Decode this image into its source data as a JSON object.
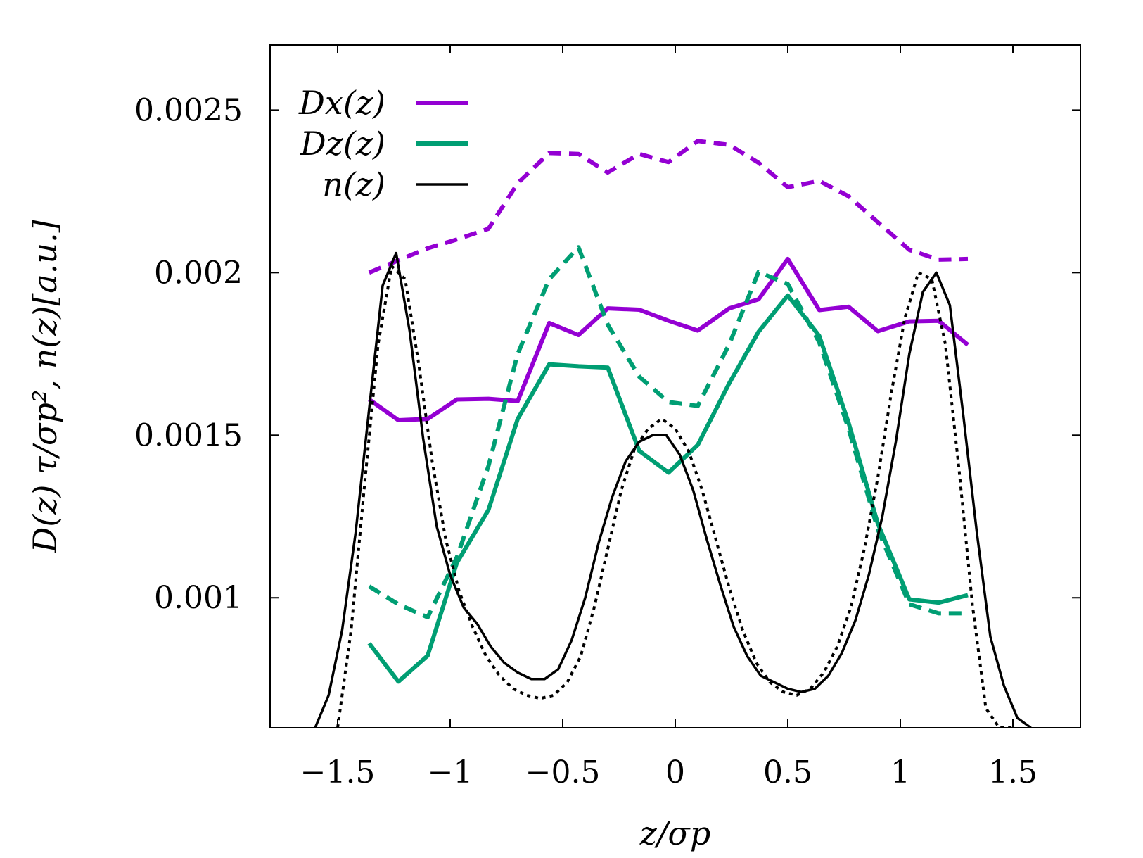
{
  "chart_data": {
    "type": "line",
    "xlabel": "z/σp",
    "ylabel": "D(z) τ/σp², n(z)[a.u.]",
    "xlim": [
      -1.8,
      1.8
    ],
    "ylim": [
      0.0006,
      0.0027
    ],
    "x_ticks": [
      {
        "value": -1.5,
        "label": "−1.5"
      },
      {
        "value": -1,
        "label": "−1"
      },
      {
        "value": -0.5,
        "label": "−0.5"
      },
      {
        "value": 0,
        "label": "0"
      },
      {
        "value": 0.5,
        "label": "0.5"
      },
      {
        "value": 1,
        "label": "1"
      },
      {
        "value": 1.5,
        "label": "1.5"
      }
    ],
    "y_ticks": [
      {
        "value": 0.001,
        "label": "0.001"
      },
      {
        "value": 0.0015,
        "label": "0.0015"
      },
      {
        "value": 0.002,
        "label": "0.002"
      },
      {
        "value": 0.0025,
        "label": "0.0025"
      }
    ],
    "legend_position": "top-left",
    "legend": [
      {
        "label": "Dx(z)",
        "color": "#9400d3",
        "style": "solid"
      },
      {
        "label": "Dz(z)",
        "color": "#009e73",
        "style": "solid"
      },
      {
        "label": "n(z)",
        "color": "#000000",
        "style": "solid"
      }
    ],
    "series": [
      {
        "name": "Dx(z)",
        "color": "#9400d3",
        "style": "solid",
        "width": 6,
        "x": [
          -1.36,
          -1.23,
          -1.1,
          -0.97,
          -0.83,
          -0.7,
          -0.56,
          -0.43,
          -0.3,
          -0.16,
          -0.03,
          0.1,
          0.24,
          0.37,
          0.5,
          0.64,
          0.77,
          0.9,
          1.04,
          1.17,
          1.3
        ],
        "y": [
          0.00161,
          0.001546,
          0.00155,
          0.00161,
          0.001612,
          0.001605,
          0.001845,
          0.001808,
          0.00189,
          0.001886,
          0.001852,
          0.001822,
          0.00189,
          0.001918,
          0.002042,
          0.001885,
          0.001895,
          0.00182,
          0.00185,
          0.001852,
          0.001778
        ]
      },
      {
        "name": "Dx(z) dashed",
        "color": "#9400d3",
        "style": "dashed",
        "width": 6,
        "x": [
          -1.36,
          -1.23,
          -1.1,
          -0.97,
          -0.83,
          -0.7,
          -0.56,
          -0.43,
          -0.3,
          -0.16,
          -0.03,
          0.1,
          0.24,
          0.37,
          0.5,
          0.64,
          0.77,
          0.9,
          1.04,
          1.17,
          1.3
        ],
        "y": [
          0.002,
          0.002038,
          0.002075,
          0.002102,
          0.002135,
          0.002275,
          0.002368,
          0.002365,
          0.002308,
          0.002365,
          0.00234,
          0.002405,
          0.002393,
          0.002338,
          0.002263,
          0.002282,
          0.002235,
          0.002155,
          0.00207,
          0.00204,
          0.002042
        ]
      },
      {
        "name": "Dz(z)",
        "color": "#009e73",
        "style": "solid",
        "width": 6,
        "x": [
          -1.36,
          -1.23,
          -1.1,
          -0.97,
          -0.83,
          -0.7,
          -0.56,
          -0.43,
          -0.3,
          -0.16,
          -0.03,
          0.1,
          0.24,
          0.37,
          0.5,
          0.64,
          0.77,
          0.9,
          1.04,
          1.17,
          1.3
        ],
        "y": [
          0.00086,
          0.000742,
          0.000822,
          0.001108,
          0.00127,
          0.00155,
          0.001718,
          0.001712,
          0.001708,
          0.001452,
          0.001385,
          0.00147,
          0.00166,
          0.001818,
          0.00193,
          0.001805,
          0.001538,
          0.001228,
          0.000995,
          0.000985,
          0.001008
        ]
      },
      {
        "name": "Dz(z) dashed",
        "color": "#009e73",
        "style": "dashed",
        "width": 6,
        "x": [
          -1.36,
          -1.23,
          -1.1,
          -0.97,
          -0.83,
          -0.7,
          -0.56,
          -0.43,
          -0.3,
          -0.16,
          -0.03,
          0.1,
          0.24,
          0.37,
          0.5,
          0.64,
          0.77,
          0.9,
          1.04,
          1.17,
          1.3
        ],
        "y": [
          0.001035,
          0.00098,
          0.00094,
          0.001125,
          0.001405,
          0.00175,
          0.00198,
          0.002078,
          0.00184,
          0.00168,
          0.001602,
          0.00159,
          0.00178,
          0.002002,
          0.001965,
          0.001785,
          0.00152,
          0.00121,
          0.00098,
          0.000952,
          0.000952
        ]
      },
      {
        "name": "n(z)",
        "color": "#000000",
        "style": "solid",
        "width": 3.5,
        "x": [
          -1.6,
          -1.54,
          -1.48,
          -1.42,
          -1.36,
          -1.3,
          -1.24,
          -1.18,
          -1.12,
          -1.06,
          -1.0,
          -0.94,
          -0.88,
          -0.82,
          -0.76,
          -0.7,
          -0.64,
          -0.58,
          -0.52,
          -0.46,
          -0.4,
          -0.34,
          -0.28,
          -0.22,
          -0.16,
          -0.1,
          -0.04,
          0.02,
          0.08,
          0.14,
          0.2,
          0.26,
          0.32,
          0.38,
          0.44,
          0.5,
          0.56,
          0.62,
          0.68,
          0.74,
          0.8,
          0.86,
          0.92,
          0.98,
          1.04,
          1.1,
          1.16,
          1.22,
          1.28,
          1.34,
          1.4,
          1.46,
          1.52,
          1.58
        ],
        "y": [
          0.0006,
          0.0007,
          0.0009,
          0.0012,
          0.00158,
          0.00196,
          0.00206,
          0.00182,
          0.00149,
          0.00122,
          0.00107,
          0.00097,
          0.00092,
          0.00085,
          0.0008,
          0.00077,
          0.00075,
          0.00075,
          0.00078,
          0.00087,
          0.001,
          0.00117,
          0.00131,
          0.00142,
          0.00148,
          0.0015,
          0.0015,
          0.00144,
          0.00133,
          0.00118,
          0.00104,
          0.00091,
          0.00082,
          0.00076,
          0.00074,
          0.00072,
          0.00071,
          0.00072,
          0.00076,
          0.00083,
          0.00093,
          0.00107,
          0.00125,
          0.00148,
          0.00175,
          0.00194,
          0.002,
          0.0019,
          0.00156,
          0.0012,
          0.00088,
          0.00073,
          0.00063,
          0.0006
        ]
      },
      {
        "name": "n(z) dotted",
        "color": "#000000",
        "style": "dotted",
        "width": 4,
        "x": [
          -1.5,
          -1.44,
          -1.38,
          -1.32,
          -1.26,
          -1.2,
          -1.14,
          -1.08,
          -1.02,
          -0.96,
          -0.9,
          -0.84,
          -0.78,
          -0.72,
          -0.66,
          -0.6,
          -0.54,
          -0.48,
          -0.42,
          -0.36,
          -0.3,
          -0.24,
          -0.18,
          -0.12,
          -0.06,
          0.0,
          0.06,
          0.12,
          0.18,
          0.24,
          0.3,
          0.36,
          0.42,
          0.48,
          0.54,
          0.6,
          0.66,
          0.72,
          0.78,
          0.84,
          0.9,
          0.96,
          1.02,
          1.08,
          1.14,
          1.2,
          1.26,
          1.32,
          1.38,
          1.44,
          1.5
        ],
        "y": [
          0.0006,
          0.0009,
          0.00135,
          0.00178,
          0.00202,
          0.00198,
          0.00172,
          0.00142,
          0.00118,
          0.00102,
          0.00091,
          0.00082,
          0.00076,
          0.00072,
          0.0007,
          0.00069,
          0.0007,
          0.00074,
          0.00082,
          0.00097,
          0.00115,
          0.00133,
          0.00146,
          0.00152,
          0.00155,
          0.00152,
          0.00145,
          0.00133,
          0.00118,
          0.00103,
          0.0009,
          0.0008,
          0.00074,
          0.00071,
          0.0007,
          0.00072,
          0.00077,
          0.00085,
          0.00097,
          0.00115,
          0.00137,
          0.00163,
          0.00186,
          0.002,
          0.00198,
          0.00178,
          0.0014,
          0.00098,
          0.00066,
          0.0006,
          0.0006
        ]
      }
    ]
  }
}
